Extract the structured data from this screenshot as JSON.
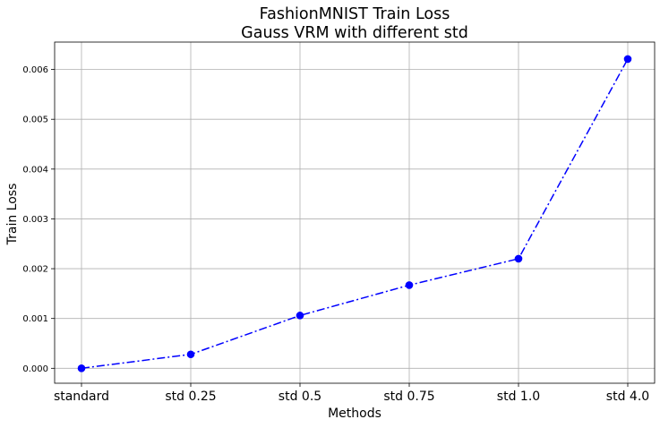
{
  "chart_data": {
    "type": "line",
    "title_line1": "FashionMNIST Train Loss",
    "title_line2": "Gauss VRM with different std",
    "xlabel": "Methods",
    "ylabel": "Train Loss",
    "categories": [
      "standard",
      "std 0.25",
      "std 0.5",
      "std 0.75",
      "std 1.0",
      "std 4.0"
    ],
    "series": [
      {
        "values": [
          0.0,
          0.00028,
          0.00106,
          0.00167,
          0.0022,
          0.00621
        ],
        "color": "#0000ff",
        "linestyle": "dashdot",
        "marker": "circle"
      }
    ],
    "ylim": [
      -0.0003,
      0.00655
    ],
    "yticks": [
      0.0,
      0.001,
      0.002,
      0.003,
      0.004,
      0.005,
      0.006
    ],
    "ytick_labels": [
      "0.000",
      "0.001",
      "0.002",
      "0.003",
      "0.004",
      "0.005",
      "0.006"
    ],
    "grid": true,
    "grid_color": "#b0b0b0",
    "axis_color": "#000000"
  }
}
